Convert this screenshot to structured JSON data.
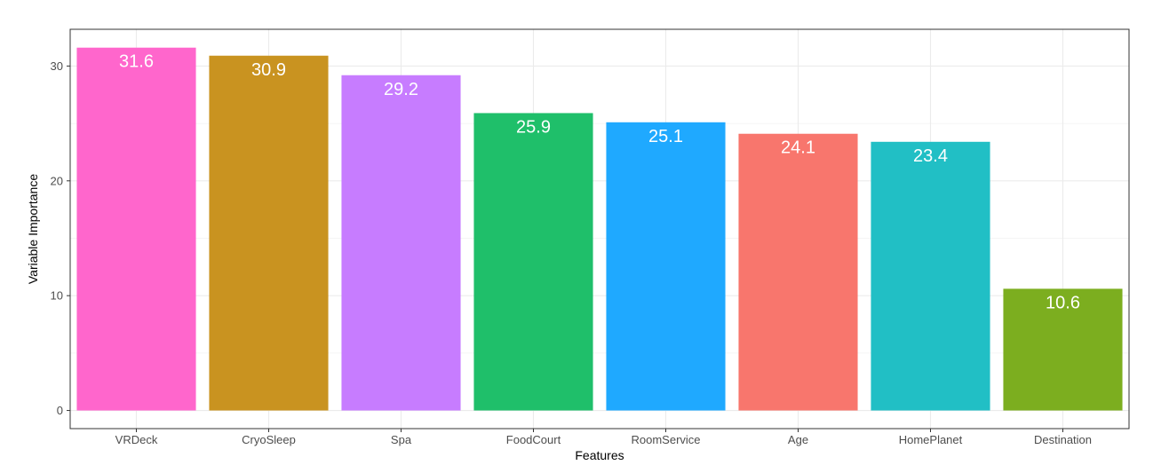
{
  "chart_data": {
    "type": "bar",
    "title": "",
    "xlabel": "Features",
    "ylabel": "Variable Importance",
    "categories": [
      "VRDeck",
      "CryoSleep",
      "Spa",
      "FoodCourt",
      "RoomService",
      "Age",
      "HomePlanet",
      "Destination"
    ],
    "values": [
      31.6,
      30.9,
      29.2,
      25.9,
      25.1,
      24.1,
      23.4,
      10.6
    ],
    "data_labels": [
      "31.6",
      "30.9",
      "29.2",
      "25.9",
      "25.1",
      "24.1",
      "23.4",
      "10.6"
    ],
    "colors": [
      "#FF66CC",
      "#C99320",
      "#C77CFF",
      "#1FBF6A",
      "#1FA9FF",
      "#F8766D",
      "#21BFC5",
      "#7CAE1F"
    ],
    "yticks": [
      0,
      10,
      20,
      30
    ],
    "ytick_labels": [
      "0",
      "10",
      "20",
      "30"
    ],
    "ylim": [
      -1.58,
      33.2
    ],
    "grid": true,
    "legend": "none"
  }
}
